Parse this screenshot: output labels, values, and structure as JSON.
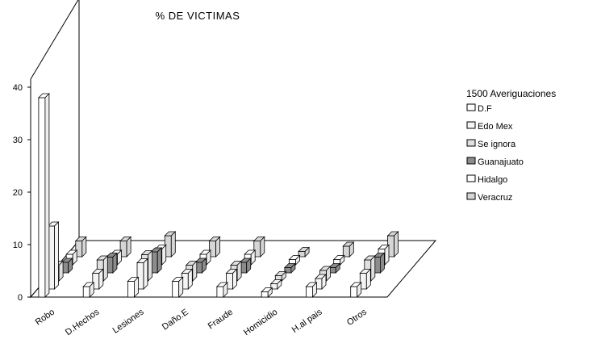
{
  "chart_data": {
    "type": "bar",
    "title": "% DE VICTIMAS",
    "xlabel": "",
    "ylabel": "",
    "ylim": [
      0,
      40
    ],
    "yticks": [
      "0",
      "10",
      "20",
      "30",
      "40"
    ],
    "categories": [
      "Robo",
      "D.Hechos",
      "Lesiones",
      "Daño.E",
      "Fraude",
      "Homicidio",
      "H.al pais",
      "Otros"
    ],
    "legend_title": "1500 Averiguaciones",
    "legend_position": "right",
    "grid": false,
    "series": [
      {
        "name": "D.F",
        "color": "#ffffff",
        "values": [
          38,
          2,
          3,
          3,
          2,
          1,
          2,
          2
        ]
      },
      {
        "name": "Edo Mex",
        "color": "#f4f4f4",
        "values": [
          12,
          3,
          5,
          3,
          3,
          1,
          2,
          3
        ]
      },
      {
        "name": "Se ignora",
        "color": "#e0e0e0",
        "values": [
          3,
          4,
          5,
          3,
          3,
          1,
          2,
          4
        ]
      },
      {
        "name": "Guanajuato",
        "color": "#8c8c8c",
        "values": [
          2,
          3,
          4,
          2,
          2,
          1,
          1,
          3
        ]
      },
      {
        "name": "Hidalgo",
        "color": "#ffffff",
        "values": [
          2,
          2,
          3,
          2,
          2,
          1,
          1,
          3
        ]
      },
      {
        "name": "Veracruz",
        "color": "#d6d6d6",
        "values": [
          3,
          3,
          4,
          3,
          3,
          1,
          2,
          4
        ]
      }
    ]
  }
}
